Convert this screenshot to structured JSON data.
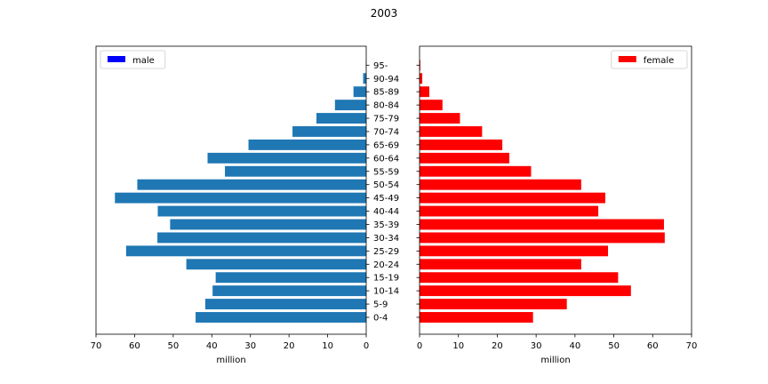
{
  "chart_data": {
    "title": "2003",
    "type": "bar",
    "categories": [
      "0-4",
      "5-9",
      "10-14",
      "15-19",
      "20-24",
      "25-29",
      "30-34",
      "35-39",
      "40-44",
      "45-49",
      "50-54",
      "55-59",
      "60-64",
      "65-69",
      "70-74",
      "75-79",
      "80-84",
      "85-89",
      "90-94",
      "95-"
    ],
    "xticks": [
      0,
      10,
      20,
      30,
      40,
      50,
      60,
      70
    ],
    "xlim": [
      0,
      70
    ],
    "panels": [
      {
        "side": "left",
        "inverted_x": true,
        "xlabel": "million",
        "legend": "male",
        "legend_position": "top-left",
        "legend_color": "#0000ff",
        "bar_color": "#1f77b4",
        "values": [
          44.2,
          41.7,
          39.8,
          39.0,
          46.6,
          62.2,
          54.1,
          50.8,
          54.0,
          65.1,
          59.3,
          36.6,
          41.1,
          30.5,
          19.1,
          12.9,
          8.1,
          3.3,
          0.8,
          0.1
        ]
      },
      {
        "side": "right",
        "inverted_x": false,
        "xlabel": "million",
        "legend": "female",
        "legend_position": "top-right",
        "legend_color": "#ff0000",
        "bar_color": "#ff0000",
        "values": [
          29.2,
          37.9,
          54.4,
          51.1,
          41.6,
          48.5,
          63.1,
          62.9,
          46.0,
          47.8,
          41.6,
          28.7,
          23.1,
          21.3,
          16.1,
          10.4,
          5.9,
          2.5,
          0.7,
          0.2
        ]
      }
    ]
  }
}
